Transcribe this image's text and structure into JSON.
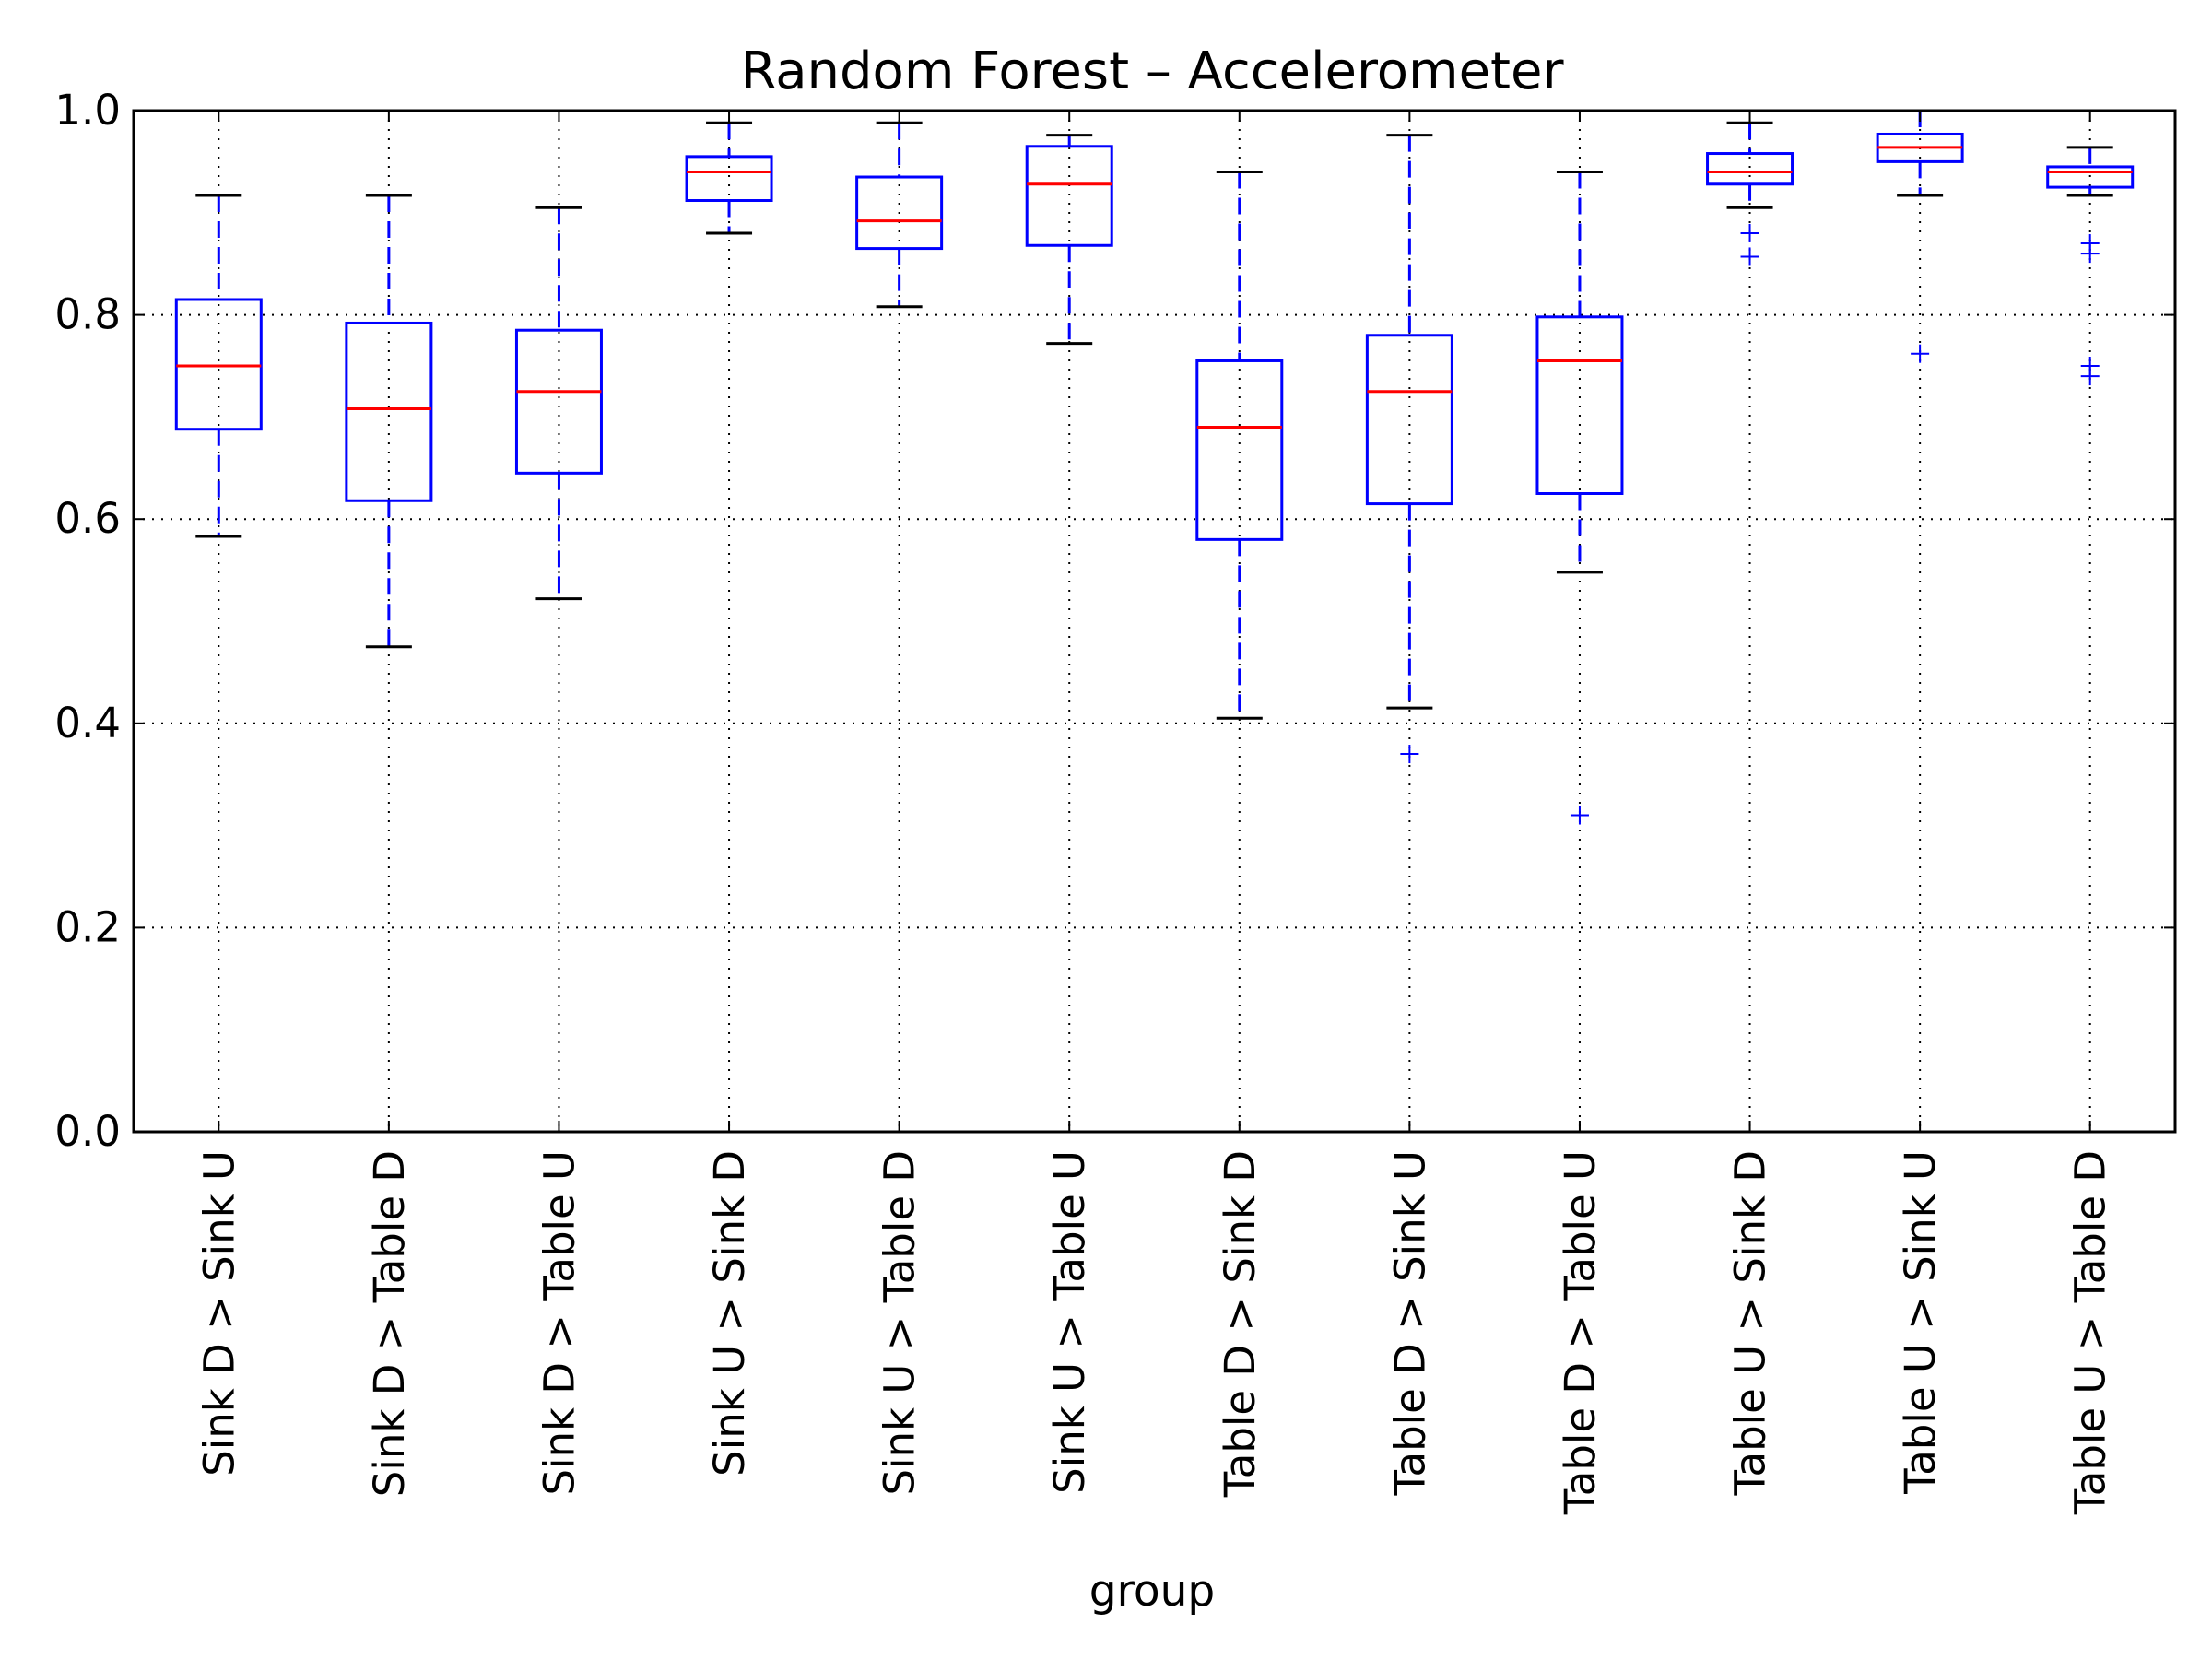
{
  "chart_data": {
    "type": "box",
    "title": "Random Forest – Accelerometer",
    "xlabel": "group",
    "ylabel": "",
    "ylim": [
      0.0,
      1.0
    ],
    "yticks": [
      "0.0",
      "0.2",
      "0.4",
      "0.6",
      "0.8",
      "1.0"
    ],
    "grid": true,
    "legend": "none",
    "colors": {
      "box": "#0000ff",
      "median": "#ff0000",
      "cap": "#000000",
      "outlier": "#0000ff"
    },
    "categories": [
      "Sink D > Sink U",
      "Sink D > Table D",
      "Sink D > Table U",
      "Sink U > Sink D",
      "Sink U > Table D",
      "Sink U > Table U",
      "Table D > Sink D",
      "Table D > Sink U",
      "Table D > Table U",
      "Table U > Sink D",
      "Table U > Sink U",
      "Table U > Table D"
    ],
    "boxes": [
      {
        "whisker_low": 0.583,
        "q1": 0.688,
        "median": 0.75,
        "q3": 0.815,
        "whisker_high": 0.917,
        "outliers": []
      },
      {
        "whisker_low": 0.475,
        "q1": 0.618,
        "median": 0.708,
        "q3": 0.792,
        "whisker_high": 0.917,
        "outliers": []
      },
      {
        "whisker_low": 0.522,
        "q1": 0.645,
        "median": 0.725,
        "q3": 0.785,
        "whisker_high": 0.905,
        "outliers": []
      },
      {
        "whisker_low": 0.88,
        "q1": 0.912,
        "median": 0.94,
        "q3": 0.955,
        "whisker_high": 0.988,
        "outliers": []
      },
      {
        "whisker_low": 0.808,
        "q1": 0.865,
        "median": 0.892,
        "q3": 0.935,
        "whisker_high": 0.988,
        "outliers": []
      },
      {
        "whisker_low": 0.772,
        "q1": 0.868,
        "median": 0.928,
        "q3": 0.965,
        "whisker_high": 0.976,
        "outliers": []
      },
      {
        "whisker_low": 0.405,
        "q1": 0.58,
        "median": 0.69,
        "q3": 0.755,
        "whisker_high": 0.94,
        "outliers": []
      },
      {
        "whisker_low": 0.415,
        "q1": 0.615,
        "median": 0.725,
        "q3": 0.78,
        "whisker_high": 0.976,
        "outliers": [
          0.37
        ]
      },
      {
        "whisker_low": 0.548,
        "q1": 0.625,
        "median": 0.755,
        "q3": 0.798,
        "whisker_high": 0.94,
        "outliers": [
          0.31
        ]
      },
      {
        "whisker_low": 0.905,
        "q1": 0.928,
        "median": 0.94,
        "q3": 0.958,
        "whisker_high": 0.988,
        "outliers": [
          0.88,
          0.857
        ]
      },
      {
        "whisker_low": 0.917,
        "q1": 0.95,
        "median": 0.964,
        "q3": 0.977,
        "whisker_high": 1.0,
        "outliers": [
          0.762
        ]
      },
      {
        "whisker_low": 0.917,
        "q1": 0.925,
        "median": 0.94,
        "q3": 0.945,
        "whisker_high": 0.964,
        "outliers": [
          0.87,
          0.86,
          0.75,
          0.74
        ]
      }
    ]
  }
}
